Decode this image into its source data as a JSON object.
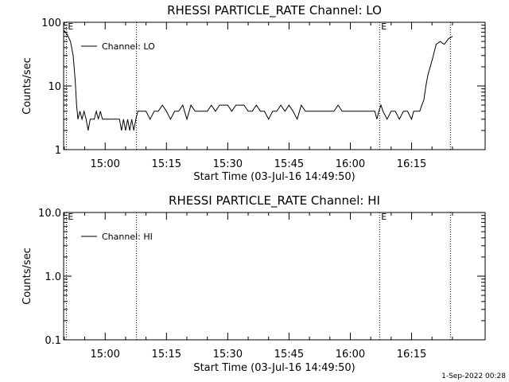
{
  "footer_timestamp": "1-Sep-2022 00:28",
  "chart_data": [
    {
      "type": "line",
      "title": "RHESSI PARTICLE_RATE Channel: LO",
      "xlabel": "Start Time (03-Jul-16 14:49:50)",
      "ylabel": "Counts/sec",
      "yscale": "log",
      "ylim": [
        1,
        100
      ],
      "y_ticks": [
        {
          "v": 1,
          "label": "1"
        },
        {
          "v": 10,
          "label": "10"
        },
        {
          "v": 100,
          "label": "100"
        }
      ],
      "xlim": [
        "14:49:50",
        "16:33:00"
      ],
      "x_ticks": [
        "15:00",
        "15:15",
        "15:30",
        "15:45",
        "16:00",
        "16:15"
      ],
      "markers": [
        {
          "x": "14:50:30",
          "label": "E"
        },
        {
          "x": "15:07:40",
          "label": ""
        },
        {
          "x": "16:07:10",
          "label": "E"
        },
        {
          "x": "16:24:30",
          "label": ""
        }
      ],
      "legend": {
        "entry": "Channel: LO",
        "position": "top-left"
      },
      "grid": false,
      "series": [
        {
          "name": "Channel: LO",
          "x": [
            "14:49:50",
            "14:50:40",
            "14:51:30",
            "14:52:10",
            "14:52:40",
            "14:53:00",
            "14:53:20",
            "14:53:50",
            "14:54:20",
            "14:54:50",
            "14:55:20",
            "14:55:50",
            "14:56:20",
            "14:56:50",
            "14:57:20",
            "14:57:50",
            "14:58:20",
            "14:58:50",
            "14:59:20",
            "14:59:50",
            "15:00:20",
            "15:01:00",
            "15:02:00",
            "15:03:00",
            "15:03:30",
            "15:04:00",
            "15:04:30",
            "15:05:00",
            "15:05:30",
            "15:06:00",
            "15:06:30",
            "15:07:00",
            "15:07:30",
            "15:08:00",
            "15:09:00",
            "15:10:00",
            "15:11:00",
            "15:12:00",
            "15:13:00",
            "15:14:00",
            "15:15:00",
            "15:16:00",
            "15:17:00",
            "15:18:00",
            "15:19:00",
            "15:20:00",
            "15:21:00",
            "15:22:00",
            "15:23:00",
            "15:24:00",
            "15:25:00",
            "15:26:00",
            "15:27:00",
            "15:28:00",
            "15:29:00",
            "15:30:00",
            "15:31:00",
            "15:32:00",
            "15:33:00",
            "15:34:00",
            "15:35:00",
            "15:36:00",
            "15:37:00",
            "15:38:00",
            "15:39:00",
            "15:40:00",
            "15:41:00",
            "15:42:00",
            "15:43:00",
            "15:44:00",
            "15:45:00",
            "15:46:00",
            "15:47:00",
            "15:48:00",
            "15:49:00",
            "15:50:00",
            "15:51:00",
            "15:52:00",
            "15:53:00",
            "15:54:00",
            "15:55:00",
            "15:56:00",
            "15:57:00",
            "15:58:00",
            "15:59:00",
            "16:00:00",
            "16:01:00",
            "16:02:00",
            "16:03:00",
            "16:04:00",
            "16:05:00",
            "16:06:00",
            "16:06:30",
            "16:07:00",
            "16:07:30",
            "16:08:00",
            "16:09:00",
            "16:10:00",
            "16:11:00",
            "16:12:00",
            "16:13:00",
            "16:14:00",
            "16:15:00",
            "16:15:30",
            "16:16:00",
            "16:16:30",
            "16:17:00",
            "16:17:30",
            "16:18:00",
            "16:18:30",
            "16:19:00",
            "16:20:00",
            "16:21:00",
            "16:22:00",
            "16:23:00",
            "16:24:00",
            "16:25:00"
          ],
          "values": [
            75,
            65,
            50,
            30,
            12,
            5,
            3,
            4,
            3,
            4,
            3,
            2,
            3,
            3,
            3,
            4,
            3,
            4,
            3,
            3,
            3,
            3,
            3,
            3,
            3,
            2,
            3,
            2,
            3,
            2,
            3,
            2,
            3,
            4,
            4,
            4,
            3,
            4,
            4,
            5,
            4,
            3,
            4,
            4,
            5,
            3,
            5,
            4,
            4,
            4,
            4,
            5,
            4,
            5,
            5,
            5,
            4,
            5,
            5,
            5,
            4,
            4,
            5,
            4,
            4,
            3,
            4,
            4,
            5,
            4,
            5,
            4,
            3,
            5,
            4,
            4,
            4,
            4,
            4,
            4,
            4,
            4,
            5,
            4,
            4,
            4,
            4,
            4,
            4,
            4,
            4,
            4,
            3,
            4,
            5,
            4,
            3,
            4,
            4,
            3,
            4,
            4,
            3,
            4,
            4,
            4,
            4,
            5,
            6,
            10,
            15,
            25,
            45,
            50,
            45,
            55,
            60
          ]
        }
      ]
    },
    {
      "type": "line",
      "title": "RHESSI PARTICLE_RATE Channel: HI",
      "xlabel": "Start Time (03-Jul-16 14:49:50)",
      "ylabel": "Counts/sec",
      "yscale": "log",
      "ylim": [
        0.1,
        10
      ],
      "y_ticks": [
        {
          "v": 0.1,
          "label": "0.1"
        },
        {
          "v": 1,
          "label": "1.0"
        },
        {
          "v": 10,
          "label": "10.0"
        }
      ],
      "xlim": [
        "14:49:50",
        "16:33:00"
      ],
      "x_ticks": [
        "15:00",
        "15:15",
        "15:30",
        "15:45",
        "16:00",
        "16:15"
      ],
      "markers": [
        {
          "x": "14:50:30",
          "label": "E"
        },
        {
          "x": "15:07:40",
          "label": ""
        },
        {
          "x": "16:07:10",
          "label": "E"
        },
        {
          "x": "16:24:30",
          "label": ""
        }
      ],
      "legend": {
        "entry": "Channel: HI",
        "position": "top-left"
      },
      "grid": false,
      "series": [
        {
          "name": "Channel: HI",
          "x": [],
          "values": []
        }
      ]
    }
  ]
}
